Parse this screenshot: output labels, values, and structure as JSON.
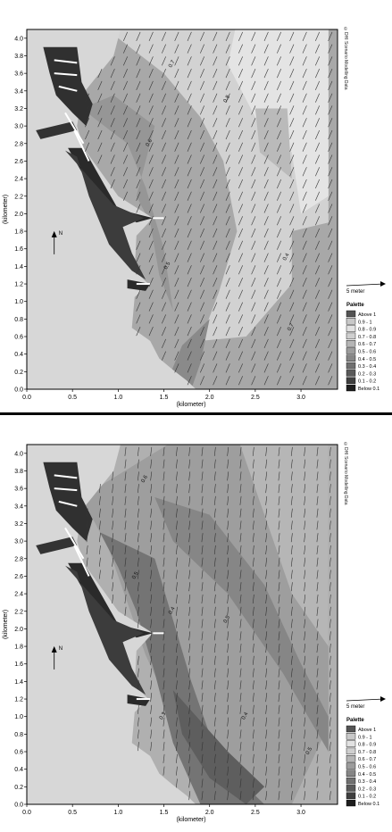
{
  "panels": [
    {
      "id": "top",
      "copyright": "©DHI Scenario Modelling Data",
      "scale_arrow_label": "5 meter",
      "north_label": "N",
      "legend": {
        "title": "Palette",
        "items": [
          {
            "label": "Above   1",
            "color": "#545454"
          },
          {
            "label": "0.9 -   1",
            "color": "#c8c8c8"
          },
          {
            "label": "0.8 - 0.9",
            "color": "#e2e2e2"
          },
          {
            "label": "0.7 - 0.8",
            "color": "#cfcfcf"
          },
          {
            "label": "0.6 - 0.7",
            "color": "#b5b5b5"
          },
          {
            "label": "0.5 - 0.6",
            "color": "#9c9c9c"
          },
          {
            "label": "0.4 - 0.5",
            "color": "#868686"
          },
          {
            "label": "0.3 - 0.4",
            "color": "#707070"
          },
          {
            "label": "0.2 - 0.3",
            "color": "#595959"
          },
          {
            "label": "0.1 - 0.2",
            "color": "#3f3f3f"
          },
          {
            "label": "Below 0.1",
            "color": "#1e1e1e"
          }
        ]
      }
    },
    {
      "id": "bottom",
      "copyright": "©DHI Scenario Modelling Data",
      "scale_arrow_label": "5 meter",
      "north_label": "N",
      "legend": {
        "title": "Palette",
        "items": [
          {
            "label": "Above   1",
            "color": "#545454"
          },
          {
            "label": "0.9 -   1",
            "color": "#c8c8c8"
          },
          {
            "label": "0.8 - 0.9",
            "color": "#e2e2e2"
          },
          {
            "label": "0.7 - 0.8",
            "color": "#cfcfcf"
          },
          {
            "label": "0.6 - 0.7",
            "color": "#b5b5b5"
          },
          {
            "label": "0.5 - 0.6",
            "color": "#9c9c9c"
          },
          {
            "label": "0.4 - 0.5",
            "color": "#868686"
          },
          {
            "label": "0.3 - 0.4",
            "color": "#707070"
          },
          {
            "label": "0.2 - 0.3",
            "color": "#595959"
          },
          {
            "label": "0.1 - 0.2",
            "color": "#3f3f3f"
          },
          {
            "label": "Below 0.1",
            "color": "#1e1e1e"
          }
        ]
      }
    }
  ],
  "chart_data": [
    {
      "type": "heatmap",
      "title": "",
      "xlabel": "(kilometer)",
      "ylabel": "(kilometer)",
      "xlim": [
        0.0,
        3.4
      ],
      "ylim": [
        0.0,
        4.1
      ],
      "xticks": [
        "0.0",
        "0.5",
        "1.0",
        "1.5",
        "2.0",
        "2.5",
        "3.0"
      ],
      "yticks": [
        "0.0",
        "0.2",
        "0.4",
        "0.6",
        "0.8",
        "1.0",
        "1.2",
        "1.4",
        "1.6",
        "1.8",
        "2.0",
        "2.2",
        "2.4",
        "2.6",
        "2.8",
        "3.0",
        "3.2",
        "3.4",
        "3.6",
        "3.8",
        "4.0"
      ],
      "grid": false,
      "legend_position": "right",
      "vector_field": "current arrows pointing north-northeast",
      "zones_description": "Land light gray on left; nearshore band 0.4-0.6; offshore band 0.7-0.9",
      "contour_labels": [
        "0.7",
        "0.6",
        "0.5",
        "0.8",
        "0.4",
        "0.7"
      ]
    },
    {
      "type": "heatmap",
      "title": "",
      "xlabel": "(kilometer)",
      "ylabel": "(kilometer)",
      "xlim": [
        0.0,
        3.4
      ],
      "ylim": [
        0.0,
        4.1
      ],
      "xticks": [
        "0.0",
        "0.5",
        "1.0",
        "1.5",
        "2.0",
        "2.5",
        "3.0"
      ],
      "yticks": [
        "0.0",
        "0.2",
        "0.4",
        "0.6",
        "0.8",
        "1.0",
        "1.2",
        "1.4",
        "1.6",
        "1.8",
        "2.0",
        "2.2",
        "2.4",
        "2.6",
        "2.8",
        "3.0",
        "3.2",
        "3.4",
        "3.6",
        "3.8",
        "4.0"
      ],
      "grid": false,
      "legend_position": "right",
      "vector_field": "current arrows pointing south",
      "zones_description": "Land light gray on left; diagonal bands 0.3-0.6 decreasing offshore",
      "contour_labels": [
        "0.6",
        "0.5",
        "0.4",
        "0.5",
        "0.3",
        "0.4",
        "0.5"
      ]
    }
  ]
}
